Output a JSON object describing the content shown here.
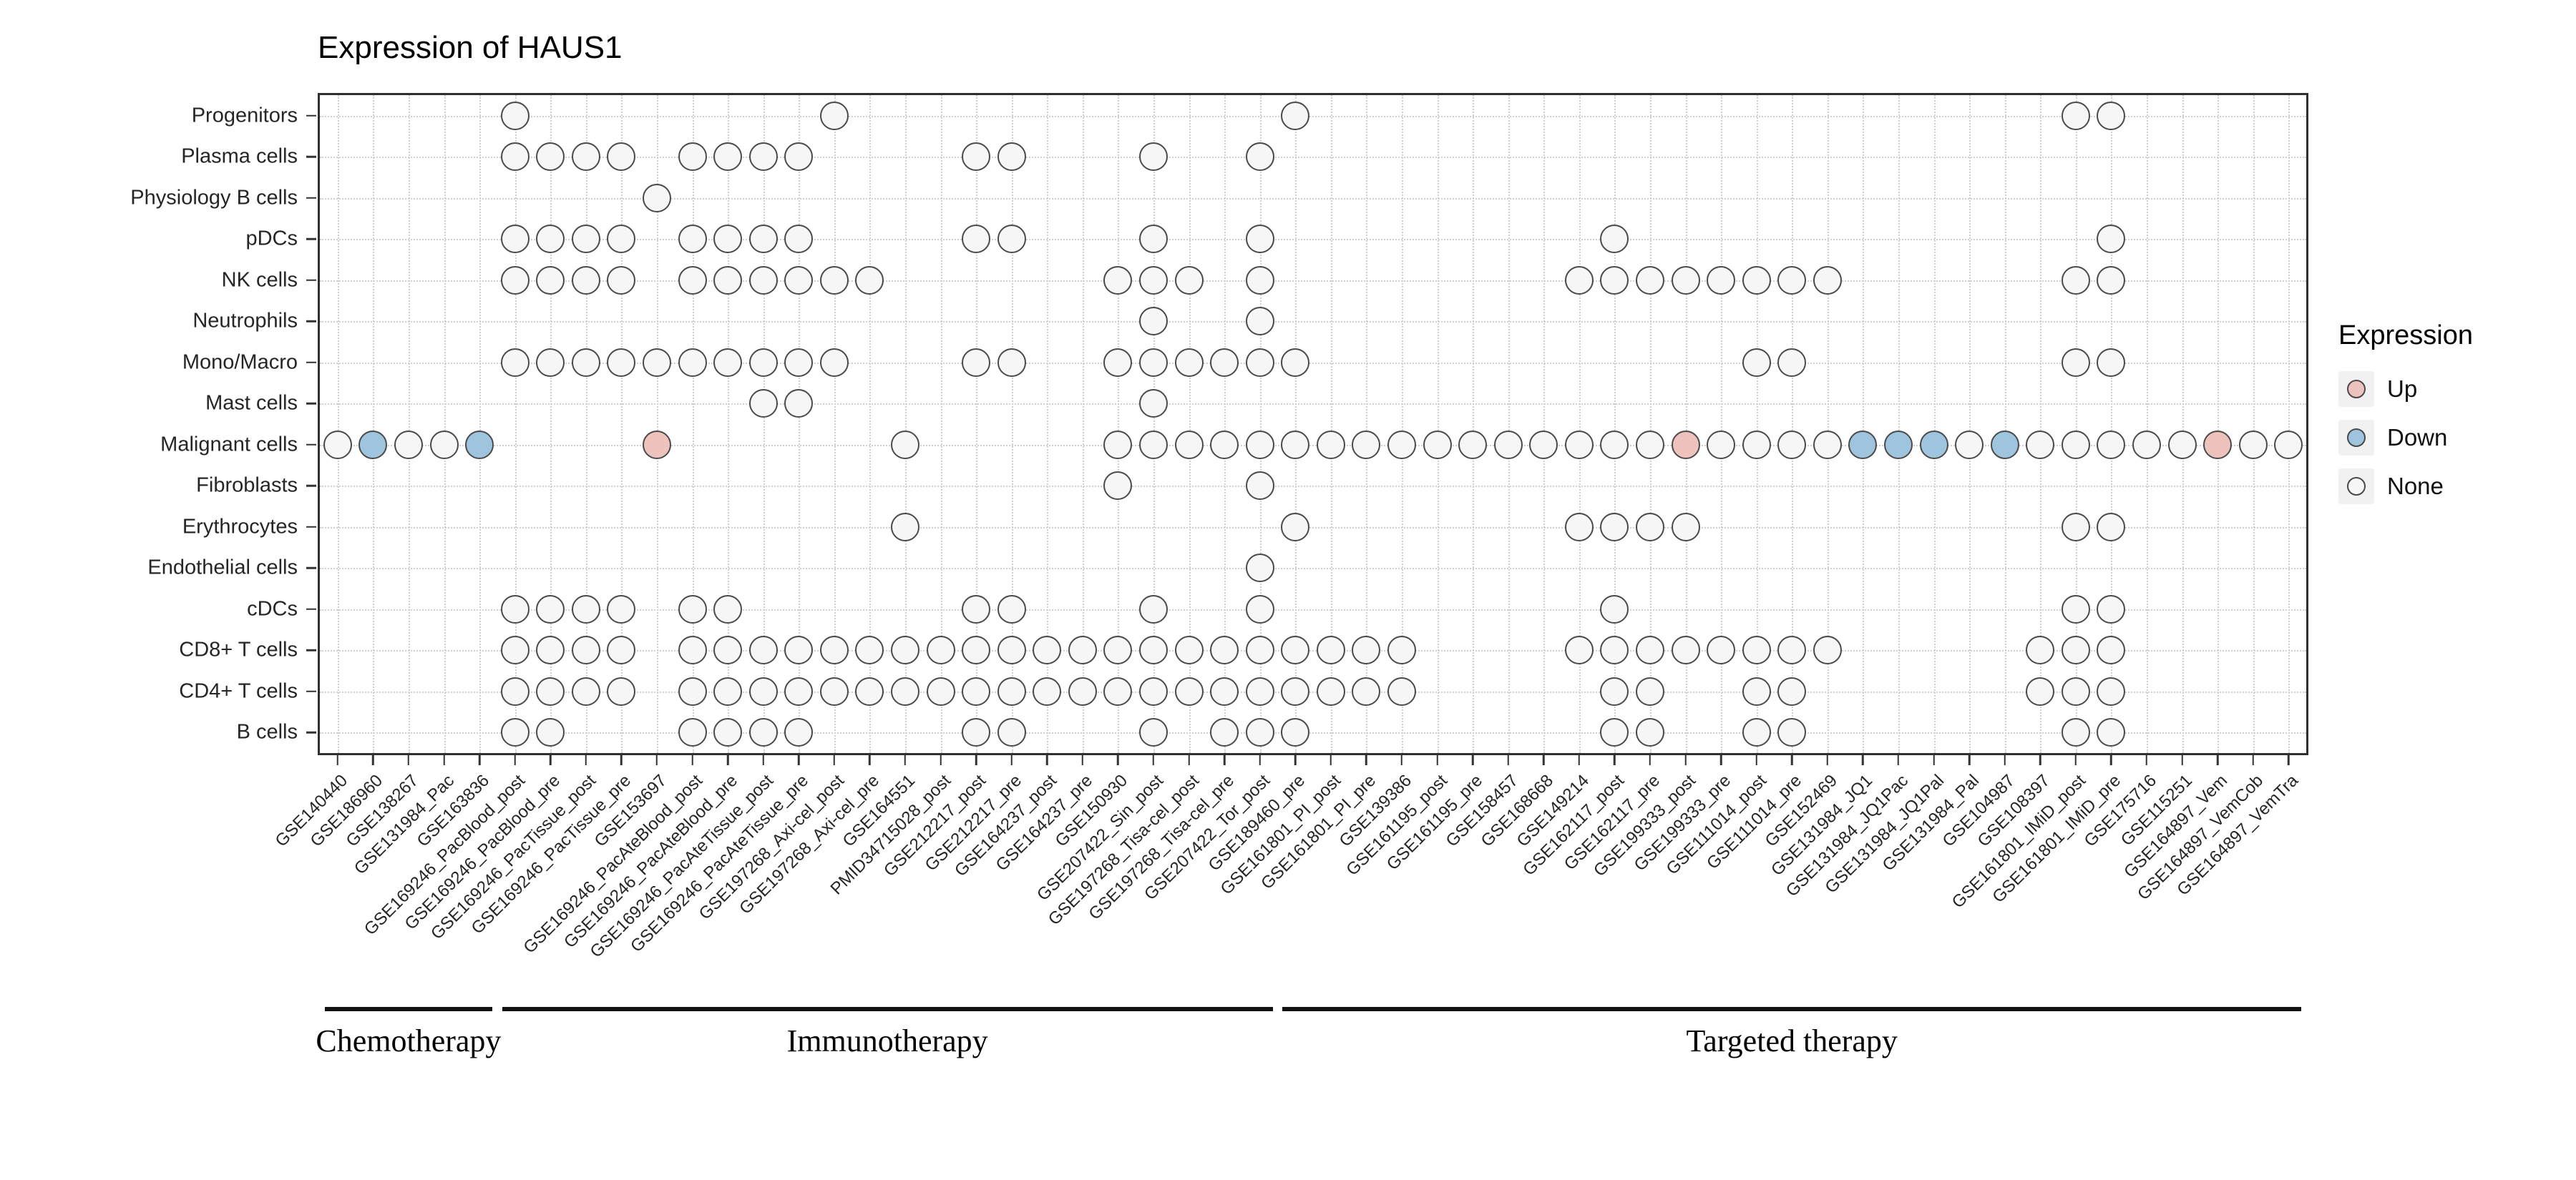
{
  "chart_data": {
    "type": "heatmap",
    "title": "Expression of HAUS1",
    "value_domain": {
      "u": "Up",
      "d": "Down",
      "n": "None"
    },
    "rows": [
      "Progenitors",
      "Plasma cells",
      "Physiology B cells",
      "pDCs",
      "NK cells",
      "Neutrophils",
      "Mono/Macro",
      "Mast cells",
      "Malignant cells",
      "Fibroblasts",
      "Erythrocytes",
      "Endothelial cells",
      "cDCs",
      "CD8+ T cells",
      "CD4+ T cells",
      "B cells"
    ],
    "columns": [
      "GSE140440",
      "GSE186960",
      "GSE138267",
      "GSE131984_Pac",
      "GSE163836",
      "GSE169246_PacBlood_post",
      "GSE169246_PacBlood_pre",
      "GSE169246_PacTissue_post",
      "GSE169246_PacTissue_pre",
      "GSE153697",
      "GSE169246_PacAteBlood_post",
      "GSE169246_PacAteBlood_pre",
      "GSE169246_PacAteTissue_post",
      "GSE169246_PacAteTissue_pre",
      "GSE197268_Axi-cel_post",
      "GSE197268_Axi-cel_pre",
      "GSE164551",
      "PMID34715028_post",
      "GSE212217_post",
      "GSE212217_pre",
      "GSE164237_post",
      "GSE164237_pre",
      "GSE150930",
      "GSE207422_Sin_post",
      "GSE197268_Tisa-cel_post",
      "GSE197268_Tisa-cel_pre",
      "GSE207422_Tor_post",
      "GSE189460_pre",
      "GSE161801_PI_post",
      "GSE161801_PI_pre",
      "GSE139386",
      "GSE161195_post",
      "GSE161195_pre",
      "GSE158457",
      "GSE168668",
      "GSE149214",
      "GSE162117_post",
      "GSE162117_pre",
      "GSE199333_post",
      "GSE199333_pre",
      "GSE111014_post",
      "GSE111014_pre",
      "GSE152469",
      "GSE131984_JQ1",
      "GSE131984_JQ1Pac",
      "GSE131984_JQ1Pal",
      "GSE131984_Pal",
      "GSE104987",
      "GSE108397",
      "GSE161801_IMiD_post",
      "GSE161801_IMiD_pre",
      "GSE175716",
      "GSE115251",
      "GSE164897_Vem",
      "GSE164897_VemCob",
      "GSE164897_VemTra"
    ],
    "groups": [
      {
        "label": "Chemotherapy",
        "col_start": 1,
        "col_end": 5
      },
      {
        "label": "Immunotherapy",
        "col_start": 6,
        "col_end": 27
      },
      {
        "label": "Targeted therapy",
        "col_start": 28,
        "col_end": 56
      }
    ],
    "legend": {
      "title": "Expression",
      "entries": [
        {
          "label": "Up",
          "value": "u",
          "color": "#eec3be"
        },
        {
          "label": "Down",
          "value": "d",
          "color": "#9fc4de"
        },
        {
          "label": "None",
          "value": "n",
          "color": "#f6f6f6"
        }
      ]
    },
    "colors": {
      "up": "#eec3be",
      "down": "#9fc4de",
      "none": "#f6f6f6",
      "dot_border": "#4a4a4a",
      "grid": "#d0d0d0",
      "axis": "#333333",
      "panel_border": "#2f2f2f"
    },
    "cells": {
      "Progenitors": [
        [
          6,
          "n"
        ],
        [
          15,
          "n"
        ],
        [
          28,
          "n"
        ],
        [
          50,
          "n"
        ],
        [
          51,
          "n"
        ]
      ],
      "Plasma cells": [
        [
          6,
          "n"
        ],
        [
          7,
          "n"
        ],
        [
          8,
          "n"
        ],
        [
          9,
          "n"
        ],
        [
          11,
          "n"
        ],
        [
          12,
          "n"
        ],
        [
          13,
          "n"
        ],
        [
          14,
          "n"
        ],
        [
          19,
          "n"
        ],
        [
          20,
          "n"
        ],
        [
          24,
          "n"
        ],
        [
          27,
          "n"
        ]
      ],
      "Physiology B cells": [
        [
          10,
          "n"
        ]
      ],
      "pDCs": [
        [
          6,
          "n"
        ],
        [
          7,
          "n"
        ],
        [
          8,
          "n"
        ],
        [
          9,
          "n"
        ],
        [
          11,
          "n"
        ],
        [
          12,
          "n"
        ],
        [
          13,
          "n"
        ],
        [
          14,
          "n"
        ],
        [
          19,
          "n"
        ],
        [
          20,
          "n"
        ],
        [
          24,
          "n"
        ],
        [
          27,
          "n"
        ],
        [
          37,
          "n"
        ],
        [
          51,
          "n"
        ]
      ],
      "NK cells": [
        [
          6,
          "n"
        ],
        [
          7,
          "n"
        ],
        [
          8,
          "n"
        ],
        [
          9,
          "n"
        ],
        [
          11,
          "n"
        ],
        [
          12,
          "n"
        ],
        [
          13,
          "n"
        ],
        [
          14,
          "n"
        ],
        [
          15,
          "n"
        ],
        [
          16,
          "n"
        ],
        [
          23,
          "n"
        ],
        [
          24,
          "n"
        ],
        [
          25,
          "n"
        ],
        [
          27,
          "n"
        ],
        [
          36,
          "n"
        ],
        [
          37,
          "n"
        ],
        [
          38,
          "n"
        ],
        [
          39,
          "n"
        ],
        [
          40,
          "n"
        ],
        [
          41,
          "n"
        ],
        [
          42,
          "n"
        ],
        [
          43,
          "n"
        ],
        [
          50,
          "n"
        ],
        [
          51,
          "n"
        ]
      ],
      "Neutrophils": [
        [
          24,
          "n"
        ],
        [
          27,
          "n"
        ]
      ],
      "Mono/Macro": [
        [
          6,
          "n"
        ],
        [
          7,
          "n"
        ],
        [
          8,
          "n"
        ],
        [
          9,
          "n"
        ],
        [
          10,
          "n"
        ],
        [
          11,
          "n"
        ],
        [
          12,
          "n"
        ],
        [
          13,
          "n"
        ],
        [
          14,
          "n"
        ],
        [
          15,
          "n"
        ],
        [
          19,
          "n"
        ],
        [
          20,
          "n"
        ],
        [
          23,
          "n"
        ],
        [
          24,
          "n"
        ],
        [
          25,
          "n"
        ],
        [
          26,
          "n"
        ],
        [
          27,
          "n"
        ],
        [
          28,
          "n"
        ],
        [
          41,
          "n"
        ],
        [
          42,
          "n"
        ],
        [
          50,
          "n"
        ],
        [
          51,
          "n"
        ]
      ],
      "Mast cells": [
        [
          13,
          "n"
        ],
        [
          14,
          "n"
        ],
        [
          24,
          "n"
        ]
      ],
      "Malignant cells": [
        [
          1,
          "n"
        ],
        [
          2,
          "d"
        ],
        [
          3,
          "n"
        ],
        [
          4,
          "n"
        ],
        [
          5,
          "d"
        ],
        [
          10,
          "u"
        ],
        [
          17,
          "n"
        ],
        [
          23,
          "n"
        ],
        [
          24,
          "n"
        ],
        [
          25,
          "n"
        ],
        [
          26,
          "n"
        ],
        [
          27,
          "n"
        ],
        [
          28,
          "n"
        ],
        [
          29,
          "n"
        ],
        [
          30,
          "n"
        ],
        [
          31,
          "n"
        ],
        [
          32,
          "n"
        ],
        [
          33,
          "n"
        ],
        [
          34,
          "n"
        ],
        [
          35,
          "n"
        ],
        [
          36,
          "n"
        ],
        [
          37,
          "n"
        ],
        [
          38,
          "n"
        ],
        [
          39,
          "u"
        ],
        [
          40,
          "n"
        ],
        [
          41,
          "n"
        ],
        [
          42,
          "n"
        ],
        [
          43,
          "n"
        ],
        [
          44,
          "d"
        ],
        [
          45,
          "d"
        ],
        [
          46,
          "d"
        ],
        [
          47,
          "n"
        ],
        [
          48,
          "d"
        ],
        [
          49,
          "n"
        ],
        [
          50,
          "n"
        ],
        [
          51,
          "n"
        ],
        [
          52,
          "n"
        ],
        [
          53,
          "n"
        ],
        [
          54,
          "u"
        ],
        [
          55,
          "n"
        ],
        [
          56,
          "n"
        ]
      ],
      "Fibroblasts": [
        [
          23,
          "n"
        ],
        [
          27,
          "n"
        ]
      ],
      "Erythrocytes": [
        [
          17,
          "n"
        ],
        [
          28,
          "n"
        ],
        [
          36,
          "n"
        ],
        [
          37,
          "n"
        ],
        [
          38,
          "n"
        ],
        [
          39,
          "n"
        ],
        [
          50,
          "n"
        ],
        [
          51,
          "n"
        ]
      ],
      "Endothelial cells": [
        [
          27,
          "n"
        ]
      ],
      "cDCs": [
        [
          6,
          "n"
        ],
        [
          7,
          "n"
        ],
        [
          8,
          "n"
        ],
        [
          9,
          "n"
        ],
        [
          11,
          "n"
        ],
        [
          12,
          "n"
        ],
        [
          19,
          "n"
        ],
        [
          20,
          "n"
        ],
        [
          24,
          "n"
        ],
        [
          27,
          "n"
        ],
        [
          37,
          "n"
        ],
        [
          50,
          "n"
        ],
        [
          51,
          "n"
        ]
      ],
      "CD8+ T cells": [
        [
          6,
          "n"
        ],
        [
          7,
          "n"
        ],
        [
          8,
          "n"
        ],
        [
          9,
          "n"
        ],
        [
          11,
          "n"
        ],
        [
          12,
          "n"
        ],
        [
          13,
          "n"
        ],
        [
          14,
          "n"
        ],
        [
          15,
          "n"
        ],
        [
          16,
          "n"
        ],
        [
          17,
          "n"
        ],
        [
          18,
          "n"
        ],
        [
          19,
          "n"
        ],
        [
          20,
          "n"
        ],
        [
          21,
          "n"
        ],
        [
          22,
          "n"
        ],
        [
          23,
          "n"
        ],
        [
          24,
          "n"
        ],
        [
          25,
          "n"
        ],
        [
          26,
          "n"
        ],
        [
          27,
          "n"
        ],
        [
          28,
          "n"
        ],
        [
          29,
          "n"
        ],
        [
          30,
          "n"
        ],
        [
          31,
          "n"
        ],
        [
          36,
          "n"
        ],
        [
          37,
          "n"
        ],
        [
          38,
          "n"
        ],
        [
          39,
          "n"
        ],
        [
          40,
          "n"
        ],
        [
          41,
          "n"
        ],
        [
          42,
          "n"
        ],
        [
          43,
          "n"
        ],
        [
          49,
          "n"
        ],
        [
          50,
          "n"
        ],
        [
          51,
          "n"
        ]
      ],
      "CD4+ T cells": [
        [
          6,
          "n"
        ],
        [
          7,
          "n"
        ],
        [
          8,
          "n"
        ],
        [
          9,
          "n"
        ],
        [
          11,
          "n"
        ],
        [
          12,
          "n"
        ],
        [
          13,
          "n"
        ],
        [
          14,
          "n"
        ],
        [
          15,
          "n"
        ],
        [
          16,
          "n"
        ],
        [
          17,
          "n"
        ],
        [
          18,
          "n"
        ],
        [
          19,
          "n"
        ],
        [
          20,
          "n"
        ],
        [
          21,
          "n"
        ],
        [
          22,
          "n"
        ],
        [
          23,
          "n"
        ],
        [
          24,
          "n"
        ],
        [
          25,
          "n"
        ],
        [
          26,
          "n"
        ],
        [
          27,
          "n"
        ],
        [
          28,
          "n"
        ],
        [
          29,
          "n"
        ],
        [
          30,
          "n"
        ],
        [
          31,
          "n"
        ],
        [
          37,
          "n"
        ],
        [
          38,
          "n"
        ],
        [
          41,
          "n"
        ],
        [
          42,
          "n"
        ],
        [
          49,
          "n"
        ],
        [
          50,
          "n"
        ],
        [
          51,
          "n"
        ]
      ],
      "B cells": [
        [
          6,
          "n"
        ],
        [
          7,
          "n"
        ],
        [
          11,
          "n"
        ],
        [
          12,
          "n"
        ],
        [
          13,
          "n"
        ],
        [
          14,
          "n"
        ],
        [
          19,
          "n"
        ],
        [
          20,
          "n"
        ],
        [
          24,
          "n"
        ],
        [
          26,
          "n"
        ],
        [
          27,
          "n"
        ],
        [
          28,
          "n"
        ],
        [
          37,
          "n"
        ],
        [
          38,
          "n"
        ],
        [
          41,
          "n"
        ],
        [
          42,
          "n"
        ],
        [
          50,
          "n"
        ],
        [
          51,
          "n"
        ]
      ]
    }
  }
}
